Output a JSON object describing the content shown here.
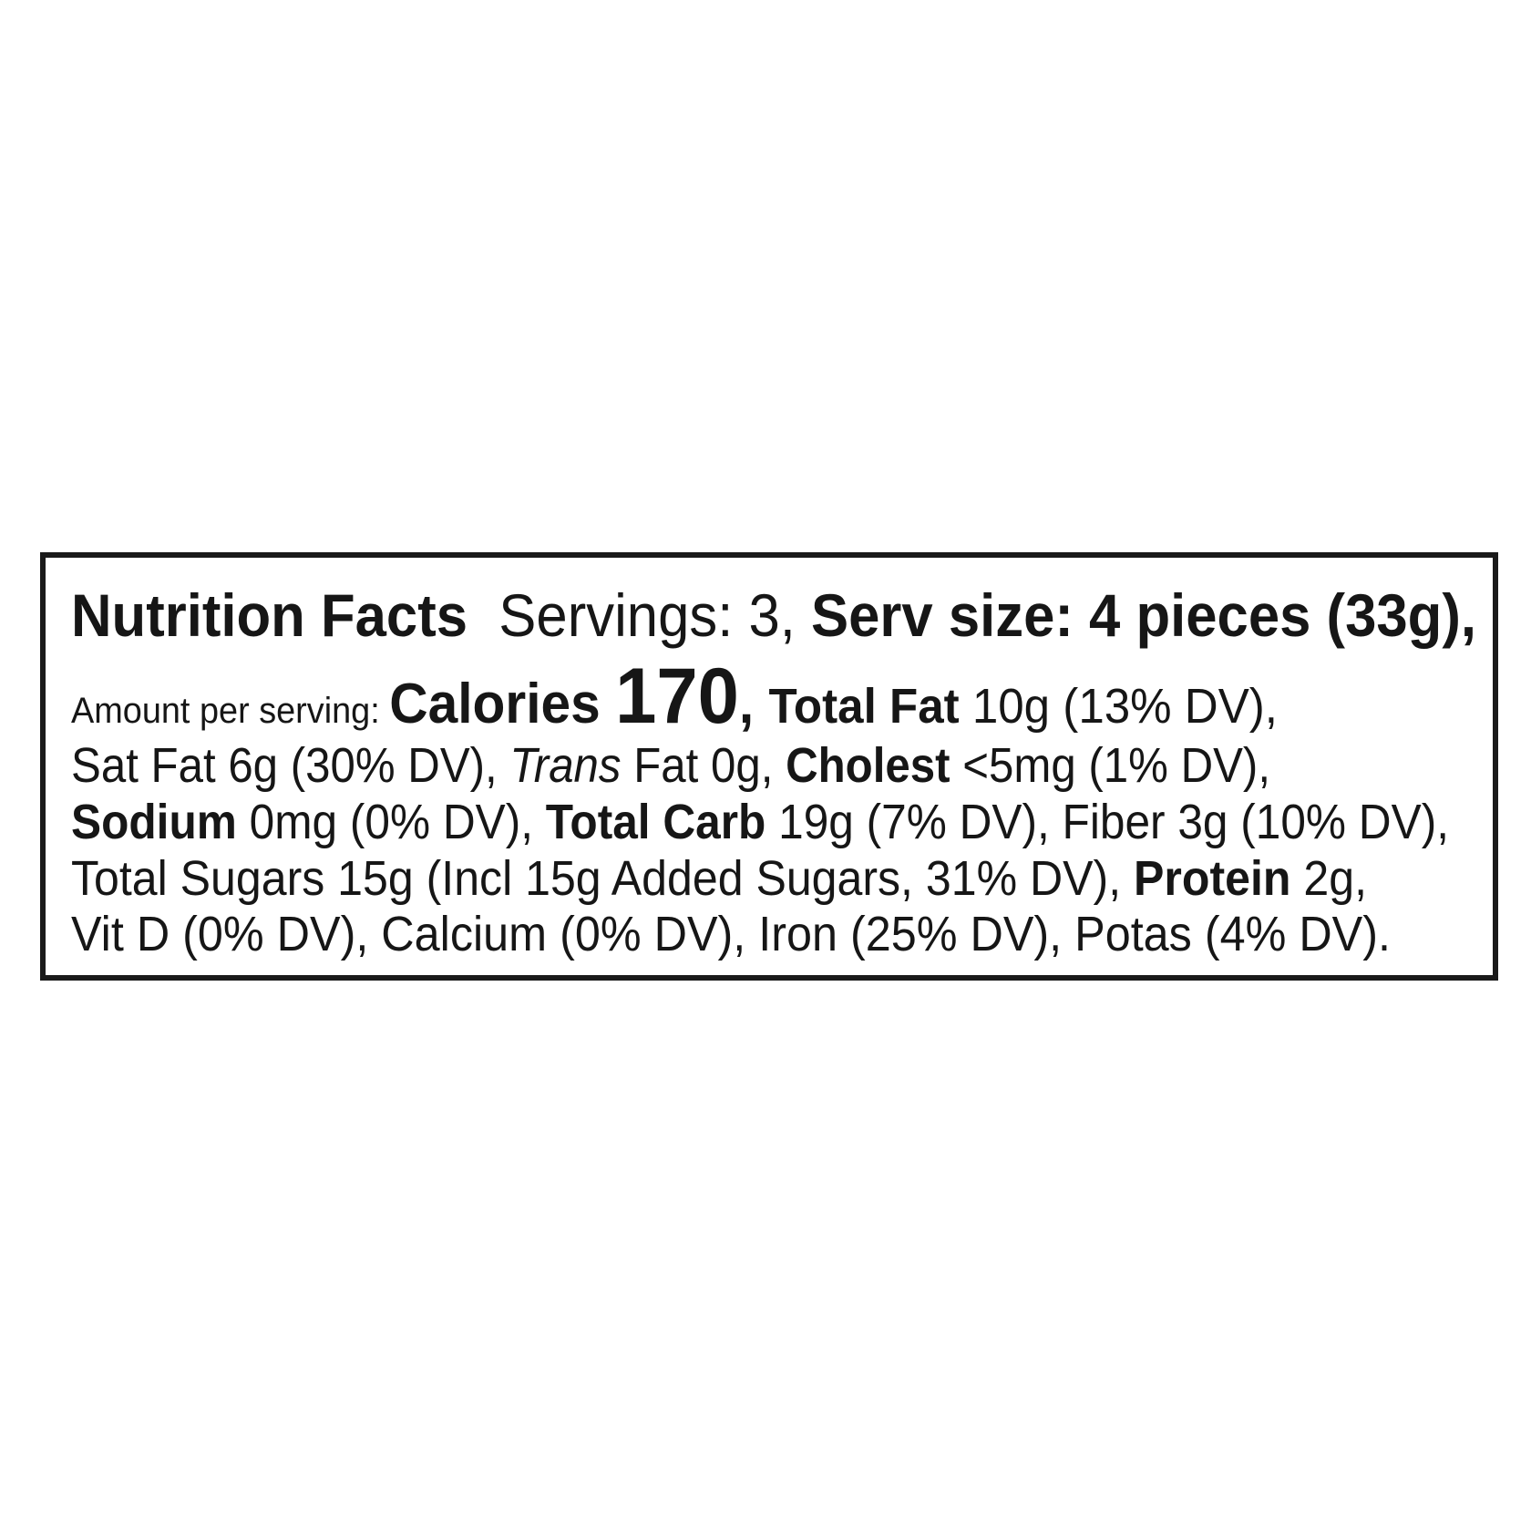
{
  "label": {
    "title": "Nutrition Facts",
    "lines": [
      {
        "segments": [
          {
            "text": "Nutrition Facts",
            "style": "b t"
          },
          {
            "text": "  Servings: 3, ",
            "style": "t"
          },
          {
            "text": "Serv size: 4 pieces (33g),",
            "style": "b t"
          }
        ]
      },
      {
        "segments": [
          {
            "text": "Amount per serving: ",
            "style": "s"
          },
          {
            "text": "Calories ",
            "style": "b c"
          },
          {
            "text": "170",
            "style": "b n"
          },
          {
            "text": ", ",
            "style": "b c"
          },
          {
            "text": "Total Fat",
            "style": "b"
          },
          {
            "text": " 10g (13% DV),",
            "style": ""
          }
        ]
      },
      {
        "segments": [
          {
            "text": "Sat Fat 6g (30% DV), ",
            "style": ""
          },
          {
            "text": "Trans",
            "style": "i"
          },
          {
            "text": " Fat 0g, ",
            "style": ""
          },
          {
            "text": "Cholest",
            "style": "b"
          },
          {
            "text": " <5mg (1% DV),",
            "style": ""
          }
        ]
      },
      {
        "segments": [
          {
            "text": "Sodium",
            "style": "b"
          },
          {
            "text": " 0mg (0% DV), ",
            "style": ""
          },
          {
            "text": "Total Carb",
            "style": "b"
          },
          {
            "text": " 19g (7% DV), Fiber 3g (10% DV),",
            "style": ""
          }
        ]
      },
      {
        "segments": [
          {
            "text": "Total Sugars 15g (Incl 15g Added Sugars, 31% DV), ",
            "style": ""
          },
          {
            "text": "Protein",
            "style": "b"
          },
          {
            "text": " 2g,",
            "style": ""
          }
        ]
      },
      {
        "segments": [
          {
            "text": "Vit D (0% DV), Calcium (0% DV), Iron (25% DV), Potas (4% DV).",
            "style": ""
          }
        ]
      }
    ]
  }
}
